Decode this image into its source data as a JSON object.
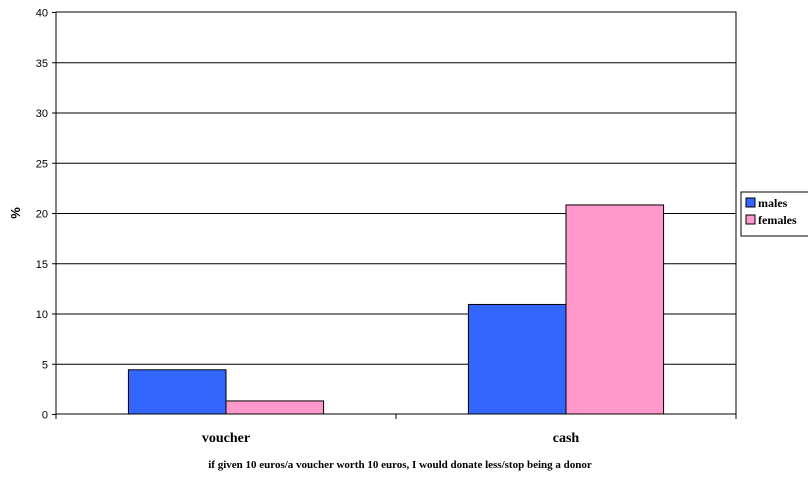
{
  "chart_data": {
    "type": "bar",
    "categories": [
      "voucher",
      "cash"
    ],
    "series": [
      {
        "name": "males",
        "values": [
          4.4,
          10.9
        ],
        "color": "#3366FF"
      },
      {
        "name": "females",
        "values": [
          1.3,
          20.8
        ],
        "color": "#FF99CC"
      }
    ],
    "xlabel": "if given 10 euros/a voucher worth 10 euros, I would donate less/stop being a donor",
    "ylabel": "%",
    "ylim": [
      0,
      40
    ],
    "yticks": [
      "0",
      "5",
      "10",
      "15",
      "20",
      "25",
      "30",
      "35",
      "40"
    ],
    "grid": true,
    "legend_position": "right"
  }
}
